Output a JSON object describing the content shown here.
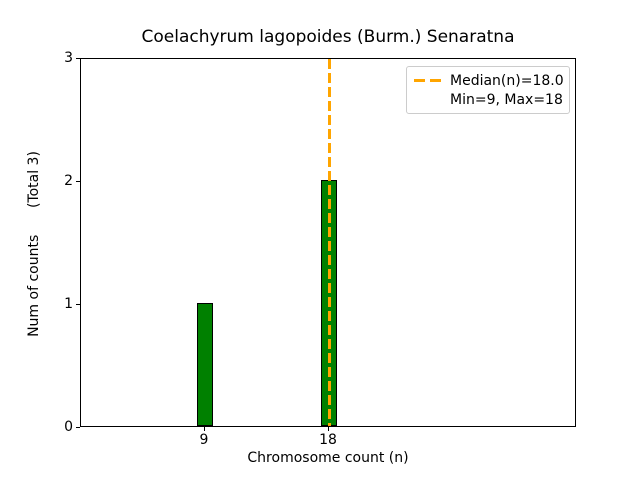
{
  "chart_data": {
    "type": "bar",
    "title": "Coelachyrum lagopoides (Burm.) Senaratna",
    "xlabel": "Chromosome count (n)",
    "ylabel": "Num of counts      (Total 3)",
    "categories": [
      9,
      18
    ],
    "values": [
      1,
      2
    ],
    "total": 3,
    "min": 9,
    "max": 18,
    "median": 18.0,
    "xlim": [
      0,
      36
    ],
    "ylim": [
      0,
      3
    ],
    "x_ticks": [
      9,
      18
    ],
    "y_ticks": [
      0,
      1,
      2,
      3
    ],
    "bar_width_units": 1.1,
    "bar_color": "#008000",
    "bar_edge_color": "#000000",
    "median_line_color": "#ffa500",
    "grid": false,
    "legend": {
      "position": "upper right",
      "entries": [
        {
          "label": "Median(n)=18.0",
          "marker": "dashed-line",
          "color": "#ffa500"
        },
        {
          "label": "Min=9, Max=18",
          "marker": "none"
        }
      ]
    }
  }
}
